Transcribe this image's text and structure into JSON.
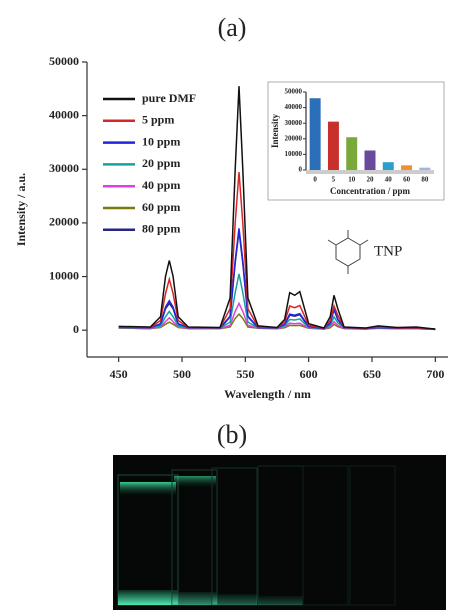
{
  "chart_data": [
    {
      "type": "line",
      "title": "(a)",
      "xlabel": "Wavelength / nm",
      "ylabel": "Intensity / a.u.",
      "xlim": [
        425,
        710
      ],
      "ylim": [
        -5000,
        50000
      ],
      "xticks": [
        450,
        500,
        550,
        600,
        650,
        700
      ],
      "yticks": [
        0,
        10000,
        20000,
        30000,
        40000,
        50000
      ],
      "legend": "upper left",
      "annotations": [
        "TNP"
      ],
      "x": [
        450,
        475,
        483,
        487,
        490,
        493,
        497,
        505,
        530,
        538,
        542,
        545,
        548,
        552,
        560,
        575,
        581,
        585,
        589,
        593,
        600,
        612,
        617,
        620,
        623,
        628,
        645,
        655,
        670,
        685,
        700
      ],
      "series": [
        {
          "name": "pure DMF",
          "color": "#111111",
          "values": [
            700,
            600,
            2500,
            10000,
            13000,
            10000,
            2500,
            600,
            500,
            6000,
            30000,
            45500,
            30000,
            6000,
            800,
            500,
            2000,
            7000,
            6500,
            7200,
            1200,
            400,
            2500,
            6500,
            4000,
            600,
            400,
            800,
            500,
            600,
            200
          ]
        },
        {
          "name": "5 ppm",
          "color": "#d62728",
          "values": [
            600,
            500,
            1800,
            6800,
            9500,
            6800,
            1800,
            500,
            450,
            4000,
            20000,
            29500,
            20000,
            4000,
            600,
            450,
            1500,
            4500,
            4200,
            4600,
            900,
            350,
            1800,
            4500,
            2800,
            500,
            350,
            600,
            400,
            450,
            200
          ]
        },
        {
          "name": "10 ppm",
          "color": "#2424e0",
          "values": [
            550,
            450,
            1200,
            4300,
            5500,
            4300,
            1200,
            450,
            400,
            2600,
            13000,
            19000,
            13000,
            2600,
            500,
            400,
            1100,
            3000,
            2800,
            3100,
            700,
            300,
            1300,
            3800,
            2000,
            450,
            300,
            500,
            350,
            400,
            200
          ]
        },
        {
          "name": "20 ppm",
          "color": "#17a0a0",
          "values": [
            500,
            400,
            800,
            2500,
            3500,
            2500,
            800,
            400,
            350,
            1500,
            7000,
            10500,
            7000,
            1500,
            450,
            350,
            800,
            2000,
            1900,
            2100,
            500,
            300,
            900,
            2500,
            1400,
            400,
            300,
            450,
            300,
            350,
            200
          ]
        },
        {
          "name": "40 ppm",
          "color": "#e040e0",
          "values": [
            450,
            350,
            600,
            1600,
            2300,
            1600,
            600,
            350,
            300,
            900,
            3500,
            5000,
            3500,
            900,
            400,
            300,
            600,
            1300,
            1200,
            1300,
            400,
            250,
            600,
            1600,
            900,
            350,
            250,
            400,
            300,
            300,
            150
          ]
        },
        {
          "name": "60 ppm",
          "color": "#7a7a10",
          "values": [
            400,
            300,
            500,
            1100,
            1500,
            1100,
            500,
            300,
            250,
            600,
            2200,
            3000,
            2200,
            600,
            350,
            250,
            450,
            900,
            850,
            900,
            350,
            200,
            450,
            1100,
            650,
            300,
            200,
            350,
            250,
            250,
            150
          ]
        },
        {
          "name": "80 ppm",
          "color": "#262680",
          "values": [
            400,
            300,
            1000,
            4000,
            5000,
            4000,
            1000,
            300,
            300,
            2500,
            12500,
            18500,
            12500,
            2500,
            450,
            300,
            1000,
            2800,
            2600,
            2900,
            600,
            250,
            1200,
            4000,
            2000,
            400,
            250,
            450,
            300,
            350,
            150
          ]
        }
      ]
    },
    {
      "type": "bar",
      "xlabel": "Concentration / ppm",
      "ylabel": "Intensity",
      "categories": [
        "0",
        "5",
        "10",
        "20",
        "40",
        "60",
        "80"
      ],
      "values": [
        46000,
        31000,
        21000,
        12500,
        5000,
        3000,
        1500
      ],
      "colors": [
        "#2a6fb8",
        "#c8302c",
        "#7aa83a",
        "#6a4a9a",
        "#2aa0c8",
        "#f09030",
        "#9ab8e0"
      ],
      "ylim": [
        0,
        50000
      ],
      "yticks": [
        0,
        10000,
        20000,
        30000,
        40000,
        50000
      ]
    }
  ],
  "photo": {
    "label": "(b)"
  }
}
